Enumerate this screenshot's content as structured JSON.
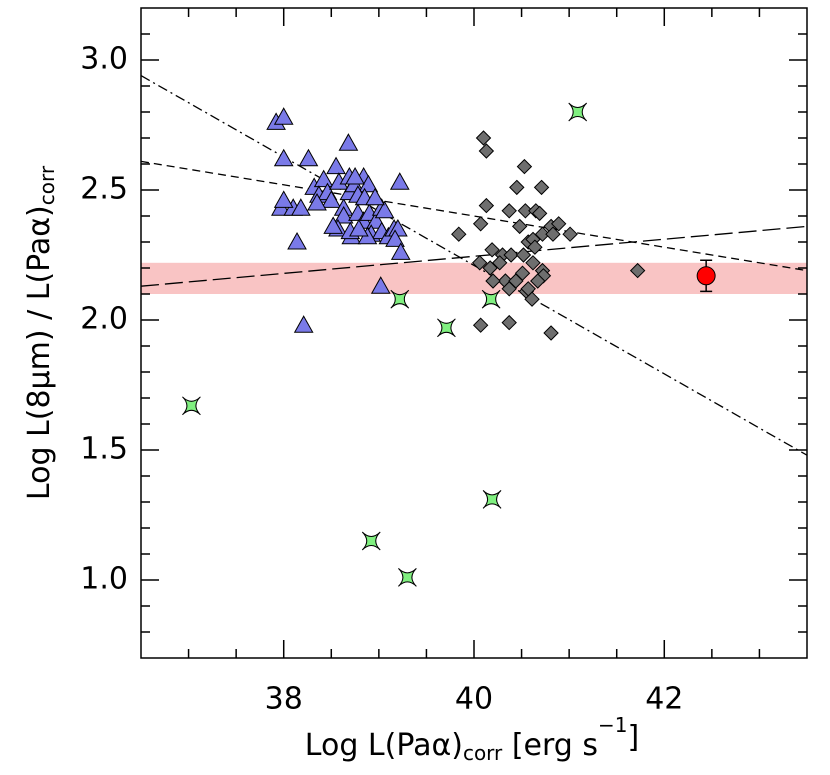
{
  "chart_data": {
    "type": "scatter",
    "xlabel": [
      "Log L(Paα)",
      "corr",
      " [erg s",
      "−1",
      "]"
    ],
    "ylabel": [
      "Log L(8μm) / L(Paα)",
      "corr"
    ],
    "xlim": [
      36.5,
      43.5
    ],
    "ylim": [
      0.7,
      3.2
    ],
    "xticks": [
      38,
      40,
      42
    ],
    "yticks": [
      {
        "value": 1.0,
        "label": "1.0"
      },
      1.5,
      {
        "value": 2.0,
        "label": "2.0"
      },
      2.5,
      {
        "value": 3.0,
        "label": "3.0"
      }
    ],
    "xminorticks": [
      37,
      37.5,
      38.5,
      39,
      39.5,
      40.5,
      41,
      41.5,
      42.5,
      43
    ],
    "yminorticks": [
      0.8,
      0.9,
      1.1,
      1.2,
      1.3,
      1.4,
      1.6,
      1.7,
      1.8,
      1.9,
      2.1,
      2.2,
      2.3,
      2.4,
      2.6,
      2.7,
      2.8,
      2.9,
      3.1
    ],
    "band": {
      "values": [
        2.1,
        2.22
      ],
      "color": "#f9c4c4"
    },
    "lines": [
      {
        "dash": "dashdot",
        "x": [
          36.5,
          43.5
        ],
        "values": [
          2.94,
          1.48
        ]
      },
      {
        "dash": "short",
        "x": [
          36.5,
          43.5
        ],
        "values": [
          2.61,
          2.19
        ]
      },
      {
        "dash": "long",
        "x": [
          36.5,
          43.5
        ],
        "values": [
          2.13,
          2.36
        ]
      }
    ],
    "series": [
      {
        "marker": "triangle",
        "color": "#7a7ae8",
        "x": [
          37.92,
          38.0,
          38.0,
          38.26,
          37.97,
          38.1,
          38.0,
          38.18,
          38.32,
          38.42,
          38.37,
          38.46,
          38.5,
          38.35,
          38.55,
          38.58,
          38.63,
          38.69,
          38.69,
          38.74,
          38.84,
          38.89,
          38.68,
          38.75,
          38.78,
          38.85,
          38.63,
          38.78,
          38.84,
          38.9,
          38.97,
          39.03,
          39.06,
          38.92,
          39.03,
          39.1,
          39.16,
          39.2,
          38.96,
          39.22,
          38.57,
          38.71,
          38.88,
          38.7,
          38.79,
          39.17,
          39.23,
          39.02,
          38.14,
          38.21,
          38.52
        ],
        "values": [
          2.76,
          2.78,
          2.62,
          2.62,
          2.43,
          2.43,
          2.46,
          2.43,
          2.51,
          2.54,
          2.48,
          2.49,
          2.46,
          2.45,
          2.59,
          2.53,
          2.43,
          2.49,
          2.55,
          2.52,
          2.55,
          2.52,
          2.68,
          2.55,
          2.48,
          2.47,
          2.4,
          2.41,
          2.38,
          2.41,
          2.38,
          2.43,
          2.42,
          2.33,
          2.34,
          2.32,
          2.35,
          2.35,
          2.47,
          2.53,
          2.35,
          2.32,
          2.32,
          2.34,
          2.35,
          2.31,
          2.26,
          2.13,
          2.3,
          1.98,
          2.36
        ]
      },
      {
        "marker": "diamond",
        "color": "#6e6e6e",
        "x": [
          40.1,
          40.13,
          40.53,
          40.45,
          40.71,
          40.13,
          40.37,
          40.54,
          40.65,
          40.69,
          39.84,
          40.07,
          40.48,
          40.72,
          40.81,
          40.83,
          40.89,
          41.01,
          40.57,
          40.62,
          40.64,
          40.19,
          40.3,
          40.27,
          40.39,
          40.52,
          40.06,
          40.17,
          40.62,
          40.72,
          40.51,
          40.33,
          40.44,
          40.2,
          40.73,
          40.37,
          40.55,
          40.61,
          40.57,
          40.07,
          40.37,
          40.81,
          41.72,
          40.67
        ],
        "values": [
          2.7,
          2.65,
          2.59,
          2.51,
          2.51,
          2.44,
          2.42,
          2.42,
          2.42,
          2.41,
          2.33,
          2.37,
          2.36,
          2.33,
          2.36,
          2.33,
          2.37,
          2.33,
          2.3,
          2.31,
          2.28,
          2.27,
          2.25,
          2.22,
          2.25,
          2.25,
          2.22,
          2.2,
          2.22,
          2.19,
          2.18,
          2.15,
          2.15,
          2.15,
          2.17,
          2.12,
          2.11,
          2.08,
          2.12,
          1.98,
          1.99,
          1.95,
          2.19,
          2.15
        ]
      },
      {
        "marker": "star",
        "color": "#80f080",
        "x": [
          37.03,
          39.22,
          39.71,
          40.18,
          41.09,
          40.19,
          38.92,
          39.3
        ],
        "values": [
          1.67,
          2.08,
          1.97,
          2.08,
          2.8,
          1.31,
          1.15,
          1.01
        ]
      },
      {
        "marker": "circle",
        "color": "#ff0000",
        "x": [
          42.44
        ],
        "values": [
          2.17
        ],
        "errors": [
          0.06
        ]
      }
    ]
  }
}
